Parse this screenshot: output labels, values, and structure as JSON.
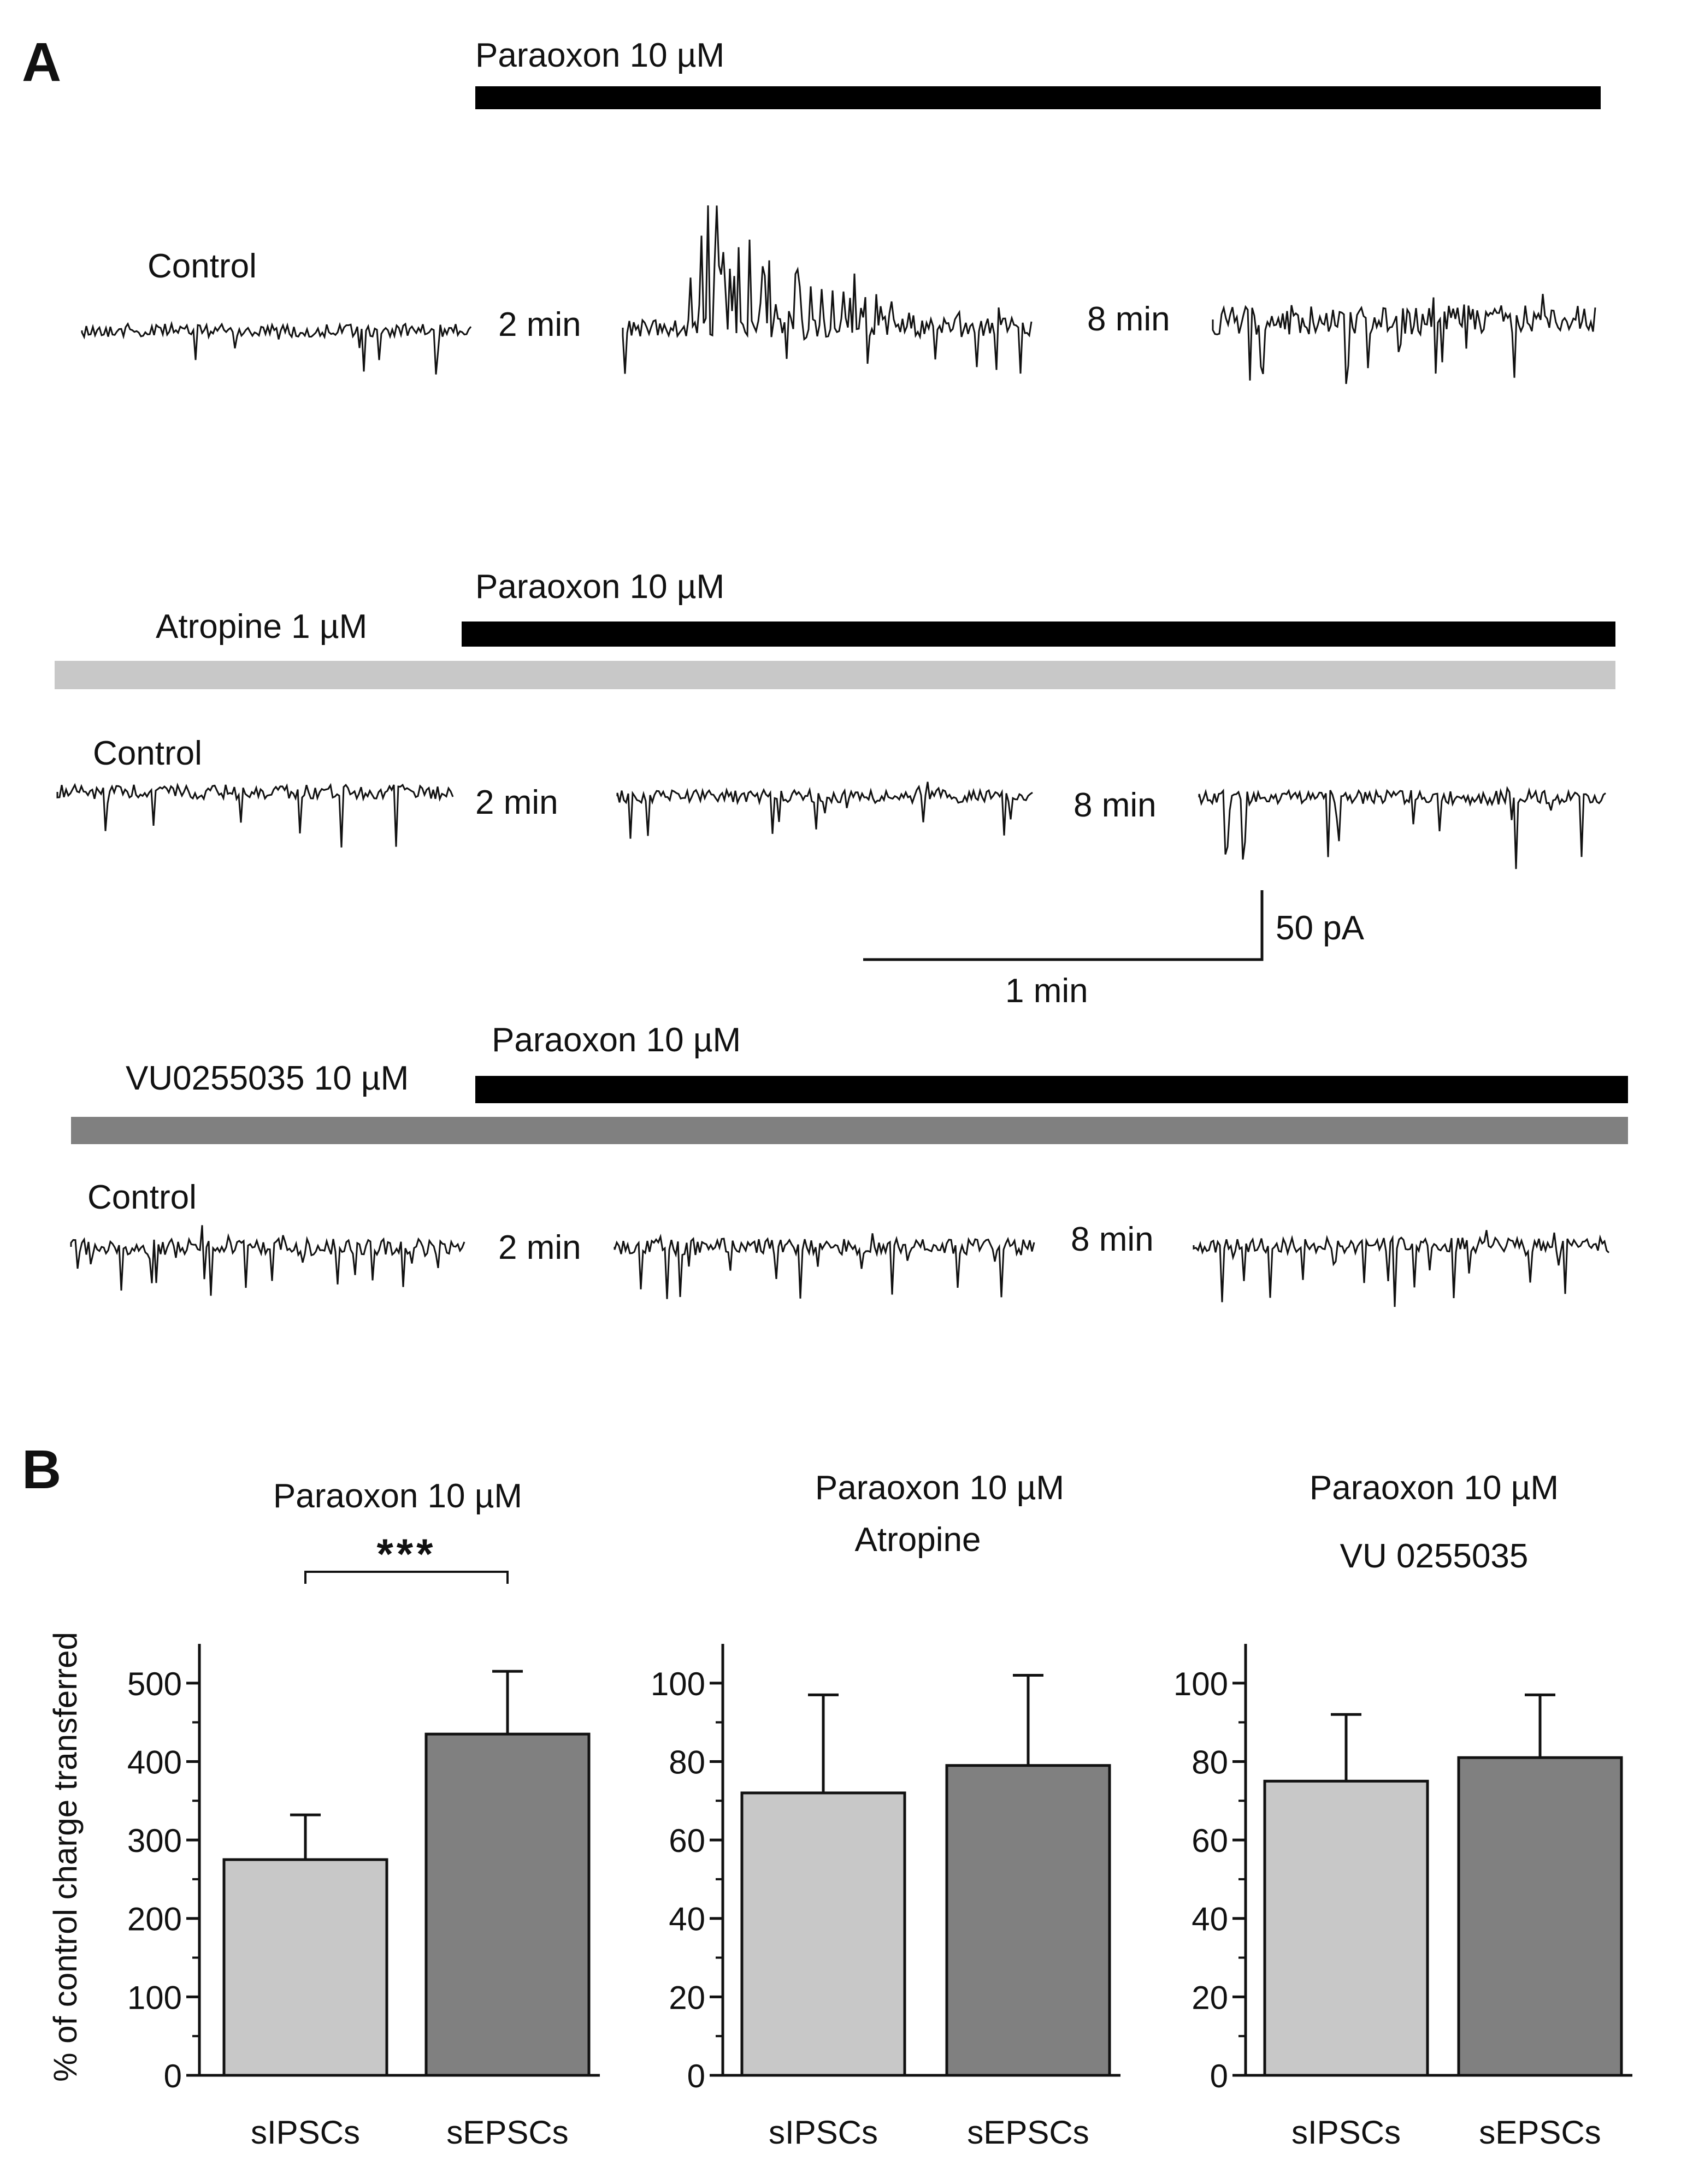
{
  "panel_a": {
    "label": "A",
    "rows": [
      {
        "drug": "Paraoxon 10 µM",
        "pretreatment": "",
        "segments": [
          {
            "label": "Control",
            "time": ""
          },
          {
            "label": "",
            "time": "2 min"
          },
          {
            "label": "",
            "time": "8 min"
          }
        ]
      },
      {
        "drug": "Paraoxon 10 µM",
        "pretreatment": "Atropine 1 µM",
        "segments": [
          {
            "label": "Control",
            "time": ""
          },
          {
            "label": "",
            "time": "2 min"
          },
          {
            "label": "",
            "time": "8 min"
          }
        ]
      },
      {
        "drug": "Paraoxon 10 µM",
        "pretreatment": "VU0255035 10 µM",
        "segments": [
          {
            "label": "Control",
            "time": ""
          },
          {
            "label": "",
            "time": "2 min"
          },
          {
            "label": "",
            "time": "8 min"
          }
        ]
      }
    ],
    "scale_bar": {
      "amplitude": "50 pA",
      "time": "1 min"
    },
    "colors": {
      "drug_bar": "#000000",
      "atropine_bar": "#c8c8c8",
      "vu_bar": "#808080"
    }
  },
  "panel_b": {
    "label": "B",
    "ylabel": "% of control charge transferred"
  },
  "chart_data": [
    {
      "type": "bar",
      "title": "Paraoxon 10 µM",
      "subtitle": "",
      "categories": [
        "sIPSCs",
        "sEPSCs"
      ],
      "values": [
        275,
        435
      ],
      "errors": [
        57,
        80
      ],
      "ylim": [
        0,
        550
      ],
      "yticks": [
        0,
        100,
        200,
        300,
        400,
        500
      ],
      "ylabel": "% of control charge transferred",
      "significance": "***",
      "colors": [
        "#c8c8c8",
        "#808080"
      ]
    },
    {
      "type": "bar",
      "title": "Paraoxon 10 µM",
      "subtitle": "Atropine",
      "categories": [
        "sIPSCs",
        "sEPSCs"
      ],
      "values": [
        72,
        79
      ],
      "errors": [
        25,
        23
      ],
      "ylim": [
        0,
        110
      ],
      "yticks": [
        0,
        20,
        40,
        60,
        80,
        100
      ],
      "ylabel": "",
      "significance": "",
      "colors": [
        "#c8c8c8",
        "#808080"
      ]
    },
    {
      "type": "bar",
      "title": "Paraoxon 10 µM",
      "subtitle": "VU 0255035",
      "categories": [
        "sIPSCs",
        "sEPSCs"
      ],
      "values": [
        75,
        81
      ],
      "errors": [
        17,
        16
      ],
      "ylim": [
        0,
        110
      ],
      "yticks": [
        0,
        20,
        40,
        60,
        80,
        100
      ],
      "ylabel": "",
      "significance": "",
      "colors": [
        "#c8c8c8",
        "#808080"
      ]
    }
  ]
}
